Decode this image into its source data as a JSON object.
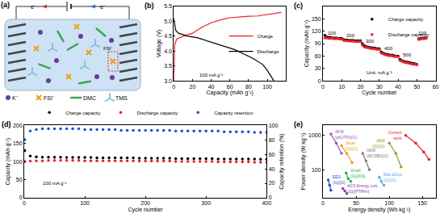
{
  "diagram": {
    "title": "(a)",
    "labels": {
      "ion": "K⁺",
      "anion": "FSI⁻",
      "solvent1": "DMC",
      "solvent2": "TMS",
      "electron": "e⁻",
      "interface_anion": "FSI⁻"
    }
  },
  "chart_data": [
    {
      "type": "line",
      "title": "(b)",
      "x_label": "Capacity (mAh g⁻¹)",
      "y_label": "Voltage (V)",
      "xlim": [
        0,
        120
      ],
      "xticks": [
        0,
        20,
        40,
        60,
        80,
        100
      ],
      "ylim": [
        3,
        5.5
      ],
      "yticks": [
        {
          "value": 3,
          "label": "3.0"
        },
        3.5,
        {
          "value": 4,
          "label": "4.0"
        },
        4.5,
        {
          "value": 5,
          "label": "5.0"
        },
        5.5
      ],
      "grid": false,
      "legend": "right",
      "line_style": "solid",
      "annotations": [
        {
          "text": "100 mA g⁻¹",
          "x": 40,
          "y": 3.2
        }
      ],
      "series": [
        {
          "name": "Charge",
          "color": "#e8202a",
          "x": [
            0,
            1,
            3,
            10,
            20,
            30,
            40,
            50,
            60,
            70,
            80,
            90,
            100,
            110,
            115
          ],
          "values": [
            3.0,
            4.2,
            4.4,
            4.5,
            4.6,
            4.8,
            4.95,
            5.05,
            5.12,
            5.15,
            5.17,
            5.18,
            5.22,
            5.28,
            5.3
          ]
        },
        {
          "name": "Discharge",
          "color": "#000000",
          "x": [
            0,
            2,
            5,
            15,
            25,
            35,
            45,
            55,
            65,
            75,
            85,
            95,
            100,
            105,
            107
          ],
          "values": [
            5.1,
            4.7,
            4.6,
            4.5,
            4.45,
            4.35,
            4.25,
            4.15,
            4.05,
            3.9,
            3.75,
            3.55,
            3.35,
            3.1,
            3.0
          ]
        }
      ]
    },
    {
      "type": "scatter",
      "title": "(c)",
      "x_label": "Cycle number",
      "y_label": "Capacity (mAh g⁻¹)",
      "xlim": [
        0,
        60
      ],
      "xticks": [
        0,
        10,
        20,
        30,
        40,
        50,
        60
      ],
      "ylim": [
        0,
        180
      ],
      "yticks": [
        0,
        30,
        60,
        90,
        120,
        150
      ],
      "grid": false,
      "legend": "upper right",
      "marker": "circle",
      "annotations": [
        {
          "text": "100",
          "x": 5,
          "y": 115
        },
        {
          "text": "200",
          "x": 15,
          "y": 110
        },
        {
          "text": "300",
          "x": 25,
          "y": 95
        },
        {
          "text": "400",
          "x": 35,
          "y": 78
        },
        {
          "text": "500",
          "x": 45,
          "y": 62
        },
        {
          "text": "100",
          "x": 53,
          "y": 116
        },
        {
          "text": "Unit: mA g⁻¹",
          "x": 30,
          "y": 20
        }
      ],
      "x": [
        1,
        2,
        3,
        4,
        5,
        6,
        7,
        8,
        9,
        10,
        11,
        12,
        13,
        14,
        15,
        16,
        17,
        18,
        19,
        20,
        21,
        22,
        23,
        24,
        25,
        26,
        27,
        28,
        29,
        30,
        31,
        32,
        33,
        34,
        35,
        36,
        37,
        38,
        39,
        40,
        41,
        42,
        43,
        44,
        45,
        46,
        47,
        48,
        49,
        50,
        51,
        52,
        53,
        54,
        55
      ],
      "series": [
        {
          "name": "Charge capacity",
          "color": "#000000",
          "values": [
            110,
            106,
            105,
            105,
            104,
            104,
            104,
            103,
            103,
            103,
            100,
            99,
            99,
            98,
            98,
            98,
            97,
            97,
            97,
            97,
            90,
            85,
            83,
            82,
            81,
            80,
            80,
            79,
            78,
            78,
            70,
            67,
            65,
            64,
            63,
            62,
            62,
            61,
            60,
            60,
            52,
            49,
            47,
            46,
            45,
            44,
            43,
            42,
            41,
            40,
            102,
            103,
            103,
            104,
            104
          ]
        },
        {
          "name": "Discharge capacity",
          "color": "#e8202a",
          "values": [
            104,
            104,
            103,
            103,
            103,
            102,
            102,
            102,
            101,
            101,
            98,
            97,
            97,
            96,
            96,
            96,
            95,
            95,
            95,
            95,
            86,
            82,
            81,
            80,
            79,
            78,
            78,
            77,
            76,
            76,
            67,
            65,
            63,
            62,
            61,
            61,
            60,
            59,
            59,
            58,
            49,
            47,
            45,
            44,
            43,
            42,
            41,
            40,
            40,
            39,
            100,
            101,
            102,
            102,
            103
          ]
        }
      ]
    },
    {
      "type": "scatter",
      "title": "(d)",
      "x_label": "Cycle number",
      "y_label": "Capacity (mAh g⁻¹)",
      "y2_label": "Capacity retention (%)",
      "xlim": [
        0,
        400
      ],
      "xticks": [
        0,
        100,
        200,
        300,
        400
      ],
      "ylim": [
        0,
        200
      ],
      "yticks": [
        0,
        50,
        100,
        150,
        200
      ],
      "y2lim": [
        0,
        100
      ],
      "y2ticks": [
        0,
        20,
        40,
        60,
        80,
        100
      ],
      "grid": false,
      "legend": "top",
      "marker": "circle",
      "annotations": [
        {
          "text": "100 mA g⁻¹",
          "x": 50,
          "y": 40
        }
      ],
      "x": [
        1,
        10,
        20,
        30,
        40,
        50,
        60,
        70,
        80,
        90,
        100,
        110,
        120,
        130,
        140,
        150,
        160,
        170,
        180,
        190,
        200,
        210,
        220,
        230,
        240,
        250,
        260,
        270,
        280,
        290,
        300,
        310,
        320,
        330,
        340,
        350,
        360,
        370,
        380,
        390,
        400
      ],
      "series": [
        {
          "name": "Charge capacity",
          "color": "#000000",
          "values": [
            130,
            115,
            113,
            112,
            112,
            112,
            112,
            111,
            111,
            111,
            111,
            111,
            110,
            110,
            110,
            110,
            110,
            110,
            110,
            109,
            109,
            109,
            109,
            109,
            109,
            108,
            108,
            108,
            108,
            108,
            108,
            108,
            107,
            107,
            107,
            107,
            107,
            107,
            107,
            106,
            106
          ]
        },
        {
          "name": "Discharge capacity",
          "color": "#e8202a",
          "values": [
            100,
            101,
            102,
            102,
            103,
            103,
            103,
            103,
            103,
            103,
            102,
            102,
            102,
            102,
            102,
            102,
            102,
            102,
            102,
            101,
            101,
            101,
            101,
            101,
            101,
            100,
            100,
            100,
            100,
            100,
            100,
            100,
            99,
            99,
            99,
            99,
            99,
            99,
            98,
            98,
            98
          ]
        },
        {
          "name": "Capacity retention",
          "color": "#1f4fd8",
          "axis": "y2",
          "values": [
            80,
            92,
            94,
            95,
            95,
            95,
            95,
            95,
            95,
            95,
            94,
            94,
            94,
            94,
            94,
            94,
            93,
            93,
            93,
            93,
            93,
            93,
            93,
            93,
            93,
            92,
            92,
            92,
            92,
            92,
            92,
            92,
            92,
            91,
            91,
            91,
            91,
            91,
            90,
            90,
            90
          ]
        }
      ]
    },
    {
      "type": "line",
      "title": "(e)",
      "x_label": "Energy density (Wh kg⁻¹)",
      "y_label": "Power density (W kg⁻¹)",
      "xlim": [
        0,
        170
      ],
      "xticks": [
        0,
        50,
        100,
        150
      ],
      "ylim": [
        15,
        2000
      ],
      "yticks": [
        100,
        1000
      ],
      "log": "y",
      "grid": false,
      "marker": "circle",
      "line_style": "solid",
      "series": [
        {
          "name": "AFM (pK2TP)|(G)",
          "color": "#9b59b6",
          "x": [
            12,
            20,
            28
          ],
          "values": [
            1100,
            600,
            300
          ]
        },
        {
          "name": "Small (G)|(G)",
          "color": "#f39c12",
          "x": [
            28,
            36,
            44
          ],
          "values": [
            500,
            300,
            160
          ]
        },
        {
          "name": "AEM (MCMB)|(G)",
          "color": "#808080",
          "x": [
            60,
            65,
            70
          ],
          "values": [
            300,
            180,
            100
          ]
        },
        {
          "name": "AEM (G)|(G)",
          "color": "#9a9a2a",
          "x": [
            100,
            110,
            118
          ],
          "values": [
            600,
            300,
            120
          ]
        },
        {
          "name": "Current work",
          "color": "#e8202a",
          "x": [
            125,
            140,
            152,
            160
          ],
          "values": [
            1000,
            600,
            330,
            200
          ]
        },
        {
          "name": "Small (G)|(KS)",
          "color": "#27ae60",
          "x": [
            35,
            38,
            42
          ],
          "values": [
            80,
            55,
            45
          ]
        },
        {
          "name": "Batt.&Sup. (G)|(G)",
          "color": "#5dade2",
          "x": [
            85,
            88,
            92
          ],
          "values": [
            60,
            45,
            35
          ]
        },
        {
          "name": "EES (G)|(G)",
          "color": "#1f4fd8",
          "x": [
            8,
            10,
            12
          ],
          "values": [
            50,
            35,
            25
          ]
        },
        {
          "name": "ACS Energy Lett. (G)|(PTPAn)",
          "color": "#8e44ad",
          "x": [
            30,
            33,
            36
          ],
          "values": [
            28,
            24,
            20
          ]
        }
      ]
    }
  ]
}
